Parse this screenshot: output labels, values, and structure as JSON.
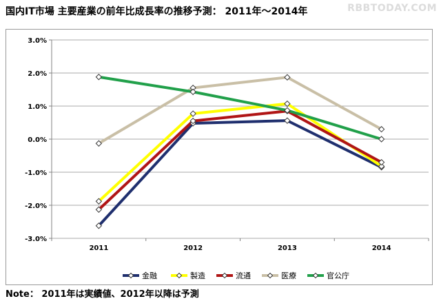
{
  "title": "国内IT市場 主要産業の前年比成長率の推移予測： 2011年～2014年",
  "watermark": "RBBTODAY.COM",
  "note": "Note： 2011年は実績値、2012年以降は予測",
  "chart_data": {
    "type": "line",
    "categories": [
      "2011",
      "2012",
      "2013",
      "2014"
    ],
    "ylim": [
      -3.0,
      3.0
    ],
    "yticks": [
      "3.0%",
      "2.0%",
      "1.0%",
      "0.0%",
      "-1.0%",
      "-2.0%",
      "-3.0%"
    ],
    "ytick_values": [
      3,
      2,
      1,
      0,
      -1,
      -2,
      -3
    ],
    "grid": true,
    "legend_position": "bottom",
    "series": [
      {
        "name": "金融",
        "color": "#1f2f6e",
        "values": [
          -2.62,
          0.48,
          0.56,
          -0.85
        ]
      },
      {
        "name": "製造",
        "color": "#ffff00",
        "values": [
          -1.88,
          0.77,
          1.07,
          -0.82
        ]
      },
      {
        "name": "流通",
        "color": "#b01515",
        "values": [
          -2.13,
          0.55,
          0.85,
          -0.7
        ]
      },
      {
        "name": "医療",
        "color": "#c9bfa6",
        "values": [
          -0.13,
          1.55,
          1.87,
          0.3
        ]
      },
      {
        "name": "官公庁",
        "color": "#21a04a",
        "values": [
          1.88,
          1.43,
          0.87,
          0.0
        ]
      }
    ]
  }
}
